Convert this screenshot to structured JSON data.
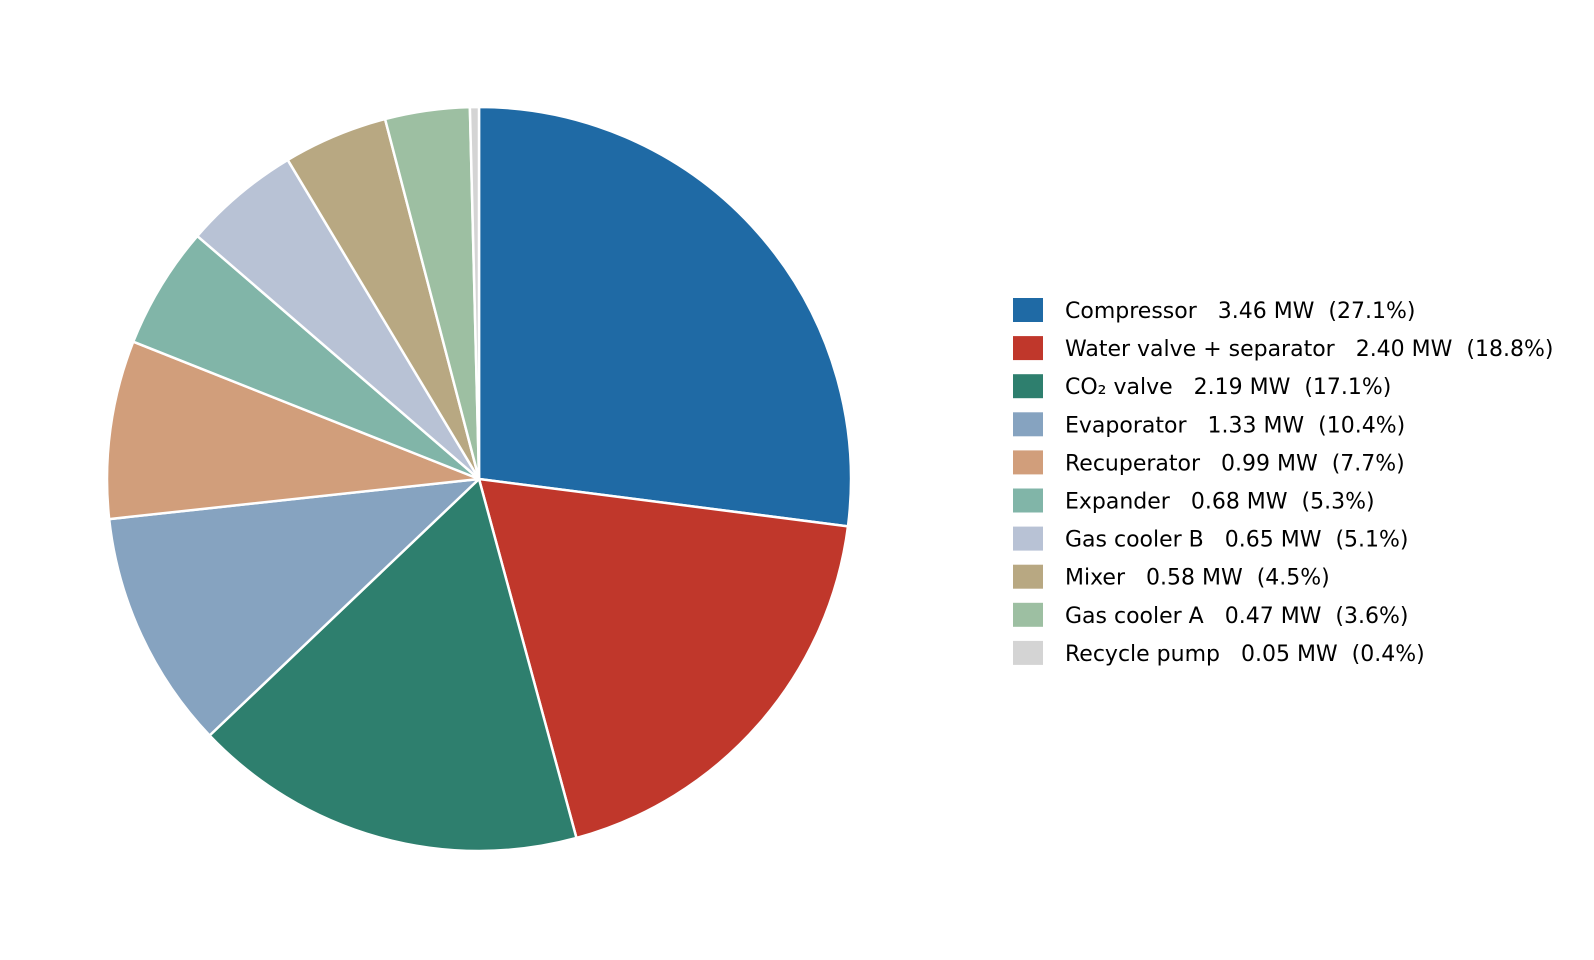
{
  "chart_data": {
    "type": "pie",
    "title": "",
    "start_angle_deg": 90,
    "direction": "clockwise",
    "slice_edge_color": "#ffffff",
    "legend_position": "right",
    "slices": [
      {
        "label": "Compressor",
        "value": 3.46,
        "percent": 27.1,
        "color": "#1f6aa5",
        "legend_text": "Compressor   3.46 MW  (27.1%)"
      },
      {
        "label": "Water valve + separator",
        "value": 2.4,
        "percent": 18.8,
        "color": "#c0372b",
        "legend_text": "Water valve + separator   2.40 MW  (18.8%)"
      },
      {
        "label": "CO₂ valve",
        "value": 2.19,
        "percent": 17.1,
        "color": "#2e7f6e",
        "legend_text": "CO₂ valve   2.19 MW  (17.1%)"
      },
      {
        "label": "Evaporator",
        "value": 1.33,
        "percent": 10.4,
        "color": "#86a3c0",
        "legend_text": "Evaporator   1.33 MW  (10.4%)"
      },
      {
        "label": "Recuperator",
        "value": 0.99,
        "percent": 7.7,
        "color": "#d19e7b",
        "legend_text": "Recuperator   0.99 MW  (7.7%)"
      },
      {
        "label": "Expander",
        "value": 0.68,
        "percent": 5.3,
        "color": "#81b5a8",
        "legend_text": "Expander   0.68 MW  (5.3%)"
      },
      {
        "label": "Gas cooler B",
        "value": 0.65,
        "percent": 5.1,
        "color": "#b8c2d5",
        "legend_text": "Gas cooler B   0.65 MW  (5.1%)"
      },
      {
        "label": "Mixer",
        "value": 0.58,
        "percent": 4.5,
        "color": "#b8a882",
        "legend_text": "Mixer   0.58 MW  (4.5%)"
      },
      {
        "label": "Gas cooler A",
        "value": 0.47,
        "percent": 3.6,
        "color": "#9dbfa2",
        "legend_text": "Gas cooler A   0.47 MW  (3.6%)"
      },
      {
        "label": "Recycle pump",
        "value": 0.05,
        "percent": 0.4,
        "color": "#d4d4d4",
        "legend_text": "Recycle pump   0.05 MW  (0.4%)"
      }
    ]
  }
}
